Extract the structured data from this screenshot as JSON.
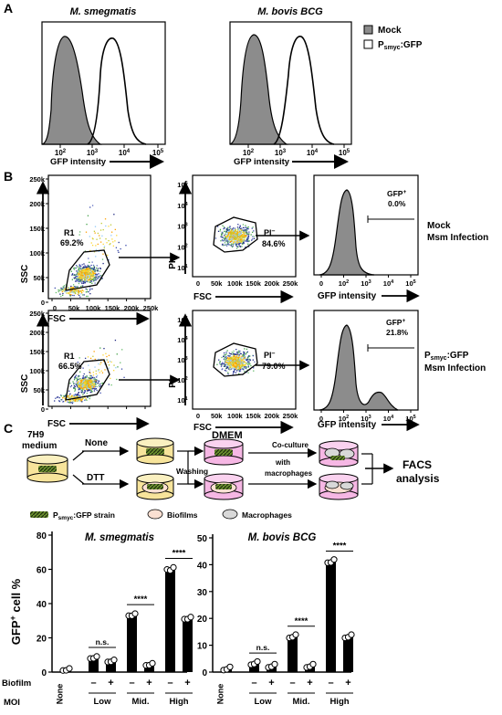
{
  "panels": {
    "a": "A",
    "b": "B",
    "c": "C"
  },
  "panel_a": {
    "title_left": "M. smegmatis",
    "title_right": "M. bovis BCG",
    "xlabel": "GFP intensity",
    "ticks": [
      "10",
      "10",
      "10",
      "10"
    ],
    "tick_exp": [
      "2",
      "3",
      "4",
      "5"
    ],
    "legend": {
      "mock": "Mock",
      "gfp_main": "P",
      "gfp_sub": "smyc",
      "gfp_tail": ":GFP"
    }
  },
  "panel_b": {
    "scatter_yticks": [
      "250k",
      "200k",
      "150k",
      "100k",
      "50k",
      "0"
    ],
    "scatter_xticks": [
      "0",
      "50k",
      "100k",
      "150k",
      "200k",
      "250k"
    ],
    "ssc": "SSC",
    "fsc": "FSC",
    "pi": "PI",
    "gfp": "GFP intensity",
    "pi_ticks": [
      "10",
      "10",
      "10",
      "10",
      "10"
    ],
    "pi_exp": [
      "5",
      "4",
      "3",
      "2",
      "1"
    ],
    "gfp_ticks": [
      "0",
      "10",
      "10",
      "10",
      "10"
    ],
    "gfp_exp": [
      "",
      "2",
      "3",
      "4",
      "5"
    ],
    "row1": {
      "gate": "R1",
      "gate_pct": "69.2%",
      "pi_label": "PI",
      "pi_sup": "–",
      "pi_pct": "84.6%",
      "gfp_label": "GFP",
      "gfp_sup": "+",
      "gfp_pct": "0.0%",
      "side1": "Mock",
      "side2": "Msm Infection"
    },
    "row2": {
      "gate": "R1",
      "gate_pct": "66.5%",
      "pi_label": "PI",
      "pi_sup": "–",
      "pi_pct": "79.0%",
      "gfp_label": "GFP",
      "gfp_sup": "+",
      "gfp_pct": "21.8%",
      "side1_main": "P",
      "side1_sub": "smyc",
      "side1_tail": ":GFP",
      "side2": "Msm Infection"
    }
  },
  "panel_c": {
    "medium1": "7H9",
    "medium2": "medium",
    "none": "None",
    "dtt": "DTT",
    "washing": "Washing",
    "dmem": "DMEM",
    "coculture1": "Co-culture",
    "coculture2": "with",
    "coculture3": "macrophages",
    "facs1": "FACS",
    "facs2": "analysis",
    "legend_strain_main": "P",
    "legend_strain_sub": "smyc",
    "legend_strain_tail": ":GFP strain",
    "legend_biofilm": "Biofilms",
    "legend_macrophage": "Macrophages"
  },
  "bar_chart": {
    "ylabel_main": "GFP",
    "ylabel_sup": "+",
    "ylabel_tail": " cell %",
    "row_biofilm": "Biofilm",
    "row_moi": "MOI",
    "none_label": "None",
    "minus": "–",
    "plus": "+",
    "sig_ns": "n.s.",
    "sig_star": "****"
  },
  "chart_data": [
    {
      "type": "bar",
      "title": "M. smegmatis",
      "categories": [
        "None",
        "Low",
        "Mid.",
        "High"
      ],
      "ylim": [
        0,
        80
      ],
      "yticks": [
        0,
        20,
        40,
        60,
        80
      ],
      "series": [
        {
          "values": [
            1,
            8,
            33,
            60
          ]
        },
        {
          "values": [
            null,
            6,
            4,
            31
          ]
        }
      ],
      "significance": [
        "n.s.",
        "****",
        "****"
      ]
    },
    {
      "type": "bar",
      "title": "M. bovis BCG",
      "categories": [
        "None",
        "Low",
        "Mid.",
        "High"
      ],
      "ylim": [
        0,
        50
      ],
      "yticks": [
        0,
        10,
        20,
        30,
        40,
        50
      ],
      "series": [
        {
          "values": [
            1,
            3,
            13,
            41
          ]
        },
        {
          "values": [
            null,
            2,
            2,
            13
          ]
        }
      ],
      "significance": [
        "n.s.",
        "****",
        "****"
      ]
    }
  ],
  "colors": {
    "mock_fill": "#8c8c8c",
    "dmem": "#f6b7e4",
    "medium": "#f7e49b",
    "biofilm": "#fbe0d2"
  }
}
